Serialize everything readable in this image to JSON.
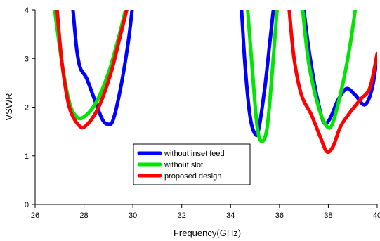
{
  "chart_data": {
    "type": "line",
    "title": "",
    "xlabel": "Frequency(GHz)",
    "ylabel": "VSWR",
    "xlim": [
      26,
      40
    ],
    "ylim": [
      0,
      4
    ],
    "xticks": [
      26,
      28,
      30,
      32,
      34,
      36,
      38,
      40
    ],
    "yticks": [
      0,
      1,
      2,
      3,
      4
    ],
    "grid": false,
    "legend_position": "bottom-center",
    "series": [
      {
        "name": "without inset feed",
        "color": "#0000ff",
        "segments": [
          [
            [
              27.55,
              4.0
            ],
            [
              27.7,
              3.2
            ],
            [
              27.85,
              2.8
            ],
            [
              28.1,
              2.6
            ],
            [
              28.4,
              2.2
            ],
            [
              28.75,
              1.75
            ],
            [
              29.0,
              1.65
            ],
            [
              29.2,
              1.75
            ],
            [
              29.5,
              2.4
            ],
            [
              29.8,
              3.3
            ],
            [
              29.97,
              4.0
            ]
          ],
          [
            [
              34.45,
              4.0
            ],
            [
              34.6,
              2.8
            ],
            [
              34.8,
              1.8
            ],
            [
              35.0,
              1.45
            ],
            [
              35.15,
              1.55
            ],
            [
              35.4,
              2.4
            ],
            [
              35.6,
              3.3
            ],
            [
              35.75,
              4.0
            ]
          ],
          [
            [
              37.0,
              4.0
            ],
            [
              37.2,
              3.2
            ],
            [
              37.5,
              2.3
            ],
            [
              37.8,
              1.7
            ],
            [
              38.05,
              1.75
            ],
            [
              38.4,
              2.15
            ],
            [
              38.75,
              2.38
            ],
            [
              39.1,
              2.25
            ],
            [
              39.5,
              2.05
            ],
            [
              39.8,
              2.4
            ],
            [
              40.0,
              3.05
            ]
          ]
        ]
      },
      {
        "name": "without slot",
        "color": "#00e600",
        "segments": [
          [
            [
              26.8,
              4.0
            ],
            [
              27.1,
              2.9
            ],
            [
              27.4,
              2.1
            ],
            [
              27.7,
              1.8
            ],
            [
              28.0,
              1.8
            ],
            [
              28.5,
              2.1
            ],
            [
              29.0,
              2.7
            ],
            [
              29.4,
              3.4
            ],
            [
              29.7,
              4.0
            ]
          ],
          [
            [
              34.7,
              4.0
            ],
            [
              34.9,
              2.7
            ],
            [
              35.1,
              1.55
            ],
            [
              35.3,
              1.3
            ],
            [
              35.5,
              1.6
            ],
            [
              35.7,
              2.7
            ],
            [
              35.9,
              4.0
            ]
          ],
          [
            [
              36.95,
              4.0
            ],
            [
              37.2,
              2.9
            ],
            [
              37.6,
              2.0
            ],
            [
              37.95,
              1.6
            ],
            [
              38.2,
              1.7
            ],
            [
              38.6,
              2.5
            ],
            [
              38.9,
              3.3
            ],
            [
              39.1,
              4.0
            ]
          ]
        ]
      },
      {
        "name": "proposed design",
        "color": "#ff0000",
        "segments": [
          [
            [
              26.9,
              4.0
            ],
            [
              27.1,
              2.9
            ],
            [
              27.4,
              2.0
            ],
            [
              27.8,
              1.62
            ],
            [
              28.1,
              1.63
            ],
            [
              28.6,
              2.0
            ],
            [
              29.1,
              2.7
            ],
            [
              29.5,
              3.5
            ],
            [
              29.75,
              4.0
            ]
          ],
          [
            [
              36.4,
              4.0
            ],
            [
              36.6,
              3.0
            ],
            [
              36.9,
              2.25
            ],
            [
              37.3,
              1.85
            ],
            [
              37.7,
              1.35
            ],
            [
              37.95,
              1.08
            ],
            [
              38.2,
              1.2
            ],
            [
              38.5,
              1.6
            ],
            [
              38.9,
              1.9
            ],
            [
              39.3,
              2.15
            ],
            [
              39.7,
              2.4
            ],
            [
              40.0,
              3.1
            ]
          ]
        ]
      }
    ]
  }
}
